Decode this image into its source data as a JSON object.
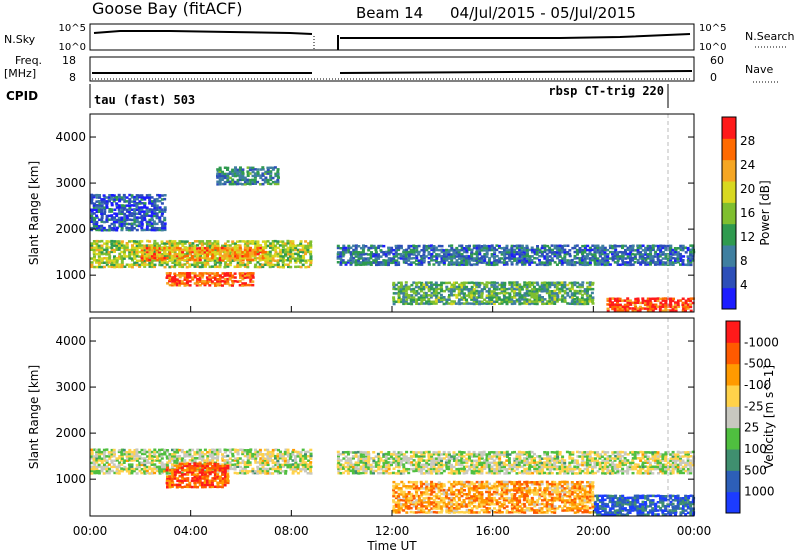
{
  "header": {
    "station": "Goose Bay (fitACF)",
    "beam": "Beam 14",
    "dates": "04/Jul/2015 - 05/Jul/2015"
  },
  "top_panels": {
    "nsky_label": "N.Sky",
    "nsky_ticks": [
      "10^5",
      "10^0"
    ],
    "nsearch_label": "N.Search",
    "nsearch_ticks": [
      "10^5",
      "10^0"
    ],
    "freq_label": "Freq.",
    "freq_unit": "[MHz]",
    "freq_ticks": [
      "18",
      "8"
    ],
    "nave_label": "Nave",
    "nave_ticks": [
      "60",
      "0"
    ],
    "cpid_label": "CPID",
    "cpid_left": "tau (fast) 503",
    "cpid_right": "rbsp CT-trig 220"
  },
  "chart_data": [
    {
      "type": "heatmap",
      "name": "power",
      "ylabel": "Slant Range [km]",
      "ylim": [
        200,
        4500
      ],
      "yticks": [
        "1000",
        "2000",
        "3000",
        "4000"
      ],
      "colorbar_label": "Power [dB]",
      "colorbar_ticks": [
        "4",
        "8",
        "12",
        "16",
        "20",
        "24",
        "28"
      ],
      "colors": [
        "#1c1cff",
        "#2d4fb8",
        "#3f7fa0",
        "#2f9a4f",
        "#7fbf2f",
        "#d8d820",
        "#f5a623",
        "#ff6a00",
        "#ff1a1a"
      ],
      "gap_hours": [
        8.8,
        9.8
      ],
      "regions": [
        {
          "t": [
            0.0,
            8.8
          ],
          "r": [
            1200,
            1800
          ],
          "level": 0.55
        },
        {
          "t": [
            2.0,
            7.0
          ],
          "r": [
            1350,
            1650
          ],
          "level": 0.75
        },
        {
          "t": [
            3.0,
            6.5
          ],
          "r": [
            800,
            1100
          ],
          "level": 0.85
        },
        {
          "t": [
            0.0,
            3.0
          ],
          "r": [
            2000,
            2800
          ],
          "level": 0.2
        },
        {
          "t": [
            5.0,
            7.5
          ],
          "r": [
            3000,
            3400
          ],
          "level": 0.3
        },
        {
          "t": [
            9.8,
            24.0
          ],
          "r": [
            1250,
            1700
          ],
          "level": 0.25
        },
        {
          "t": [
            20.5,
            24.0
          ],
          "r": [
            250,
            550
          ],
          "level": 0.9
        },
        {
          "t": [
            12.0,
            20.0
          ],
          "r": [
            400,
            900
          ],
          "level": 0.4
        }
      ]
    },
    {
      "type": "heatmap",
      "name": "velocity",
      "xlabel": "Time UT",
      "xticks": [
        "00:00",
        "04:00",
        "08:00",
        "12:00",
        "16:00",
        "20:00",
        "00:00"
      ],
      "ylabel": "Slant Range [km]",
      "ylim": [
        200,
        4500
      ],
      "yticks": [
        "1000",
        "2000",
        "3000",
        "4000"
      ],
      "colorbar_label": "Velocity [m s^-1]",
      "colorbar_ticks": [
        "1000",
        "500",
        "100",
        "25",
        "-25",
        "-100",
        "-500",
        "-1000"
      ],
      "colors": [
        "#1c3cff",
        "#2d5fb8",
        "#3f8f6f",
        "#4fbf3f",
        "#c8c8c0",
        "#ffd24a",
        "#ff9a00",
        "#ff5a00",
        "#ff1a1a"
      ],
      "gap_hours": [
        8.8,
        9.8
      ],
      "regions": [
        {
          "t": [
            0.0,
            8.8
          ],
          "r": [
            1150,
            1700
          ],
          "level": 0.5
        },
        {
          "t": [
            3.0,
            5.5
          ],
          "r": [
            850,
            1400
          ],
          "level": 0.85
        },
        {
          "t": [
            9.8,
            24.0
          ],
          "r": [
            1150,
            1650
          ],
          "level": 0.5
        },
        {
          "t": [
            20.0,
            24.0
          ],
          "r": [
            250,
            700
          ],
          "level": 0.15
        },
        {
          "t": [
            12.0,
            20.0
          ],
          "r": [
            300,
            1000
          ],
          "level": 0.7
        }
      ]
    }
  ]
}
